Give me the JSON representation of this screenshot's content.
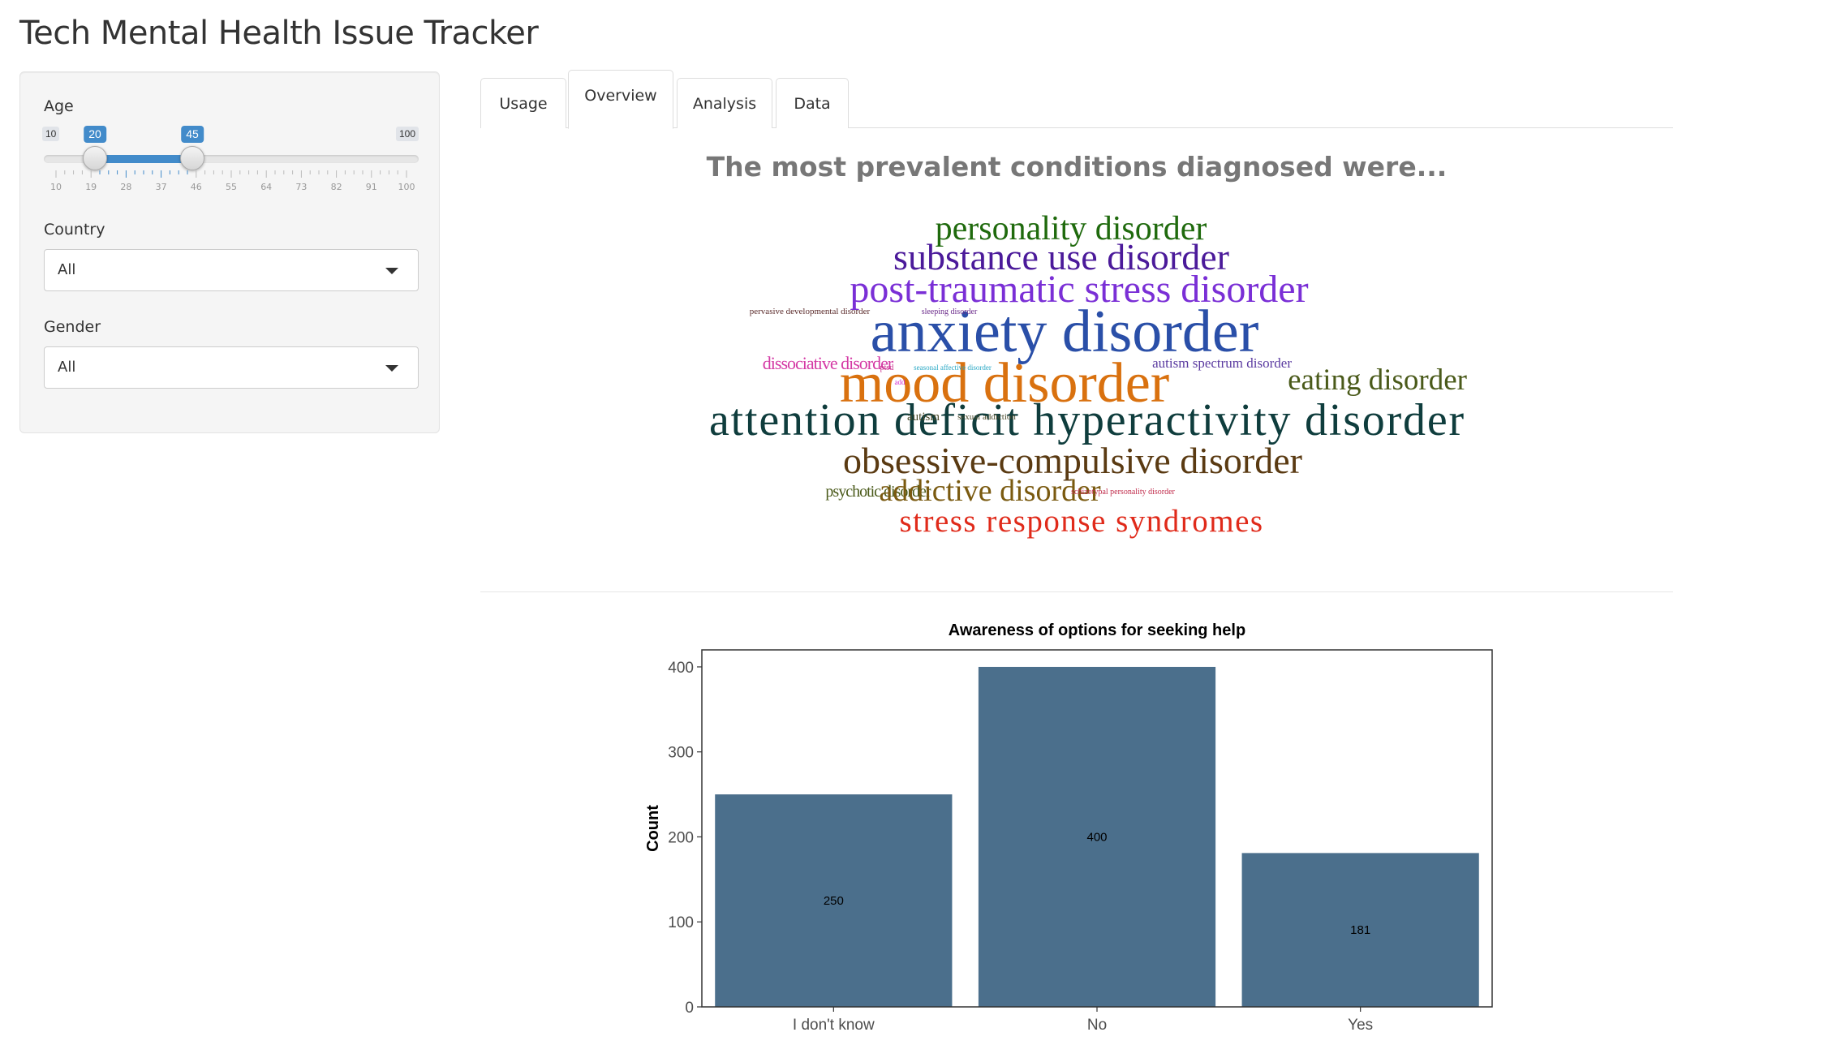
{
  "app": {
    "title": "Tech Mental Health Issue Tracker"
  },
  "sidebar": {
    "age": {
      "label": "Age",
      "min": 10,
      "max": 100,
      "from": 20,
      "to": 45,
      "min_label": "10",
      "max_label": "100",
      "from_label": "20",
      "to_label": "45",
      "grid_labels": [
        "10",
        "19",
        "28",
        "37",
        "46",
        "55",
        "64",
        "73",
        "82",
        "91",
        "100"
      ]
    },
    "country": {
      "label": "Country",
      "value": "All"
    },
    "gender": {
      "label": "Gender",
      "value": "All"
    }
  },
  "tabs": [
    {
      "label": "Usage",
      "active": false
    },
    {
      "label": "Overview",
      "active": true
    },
    {
      "label": "Analysis",
      "active": false
    },
    {
      "label": "Data",
      "active": false
    }
  ],
  "overview": {
    "heading": "The most prevalent conditions diagnosed were...",
    "wordcloud": [
      {
        "text": "personality disorder",
        "color": "#1f6a0d"
      },
      {
        "text": "substance use disorder",
        "color": "#4b1a9a"
      },
      {
        "text": "post-traumatic stress disorder",
        "color": "#7a2fd6"
      },
      {
        "text": "anxiety disorder",
        "color": "#2a4fa8"
      },
      {
        "text": "mood disorder",
        "color": "#d9710f"
      },
      {
        "text": "eating disorder",
        "color": "#4a5a1a"
      },
      {
        "text": "dissociative disorder",
        "color": "#d43aa5"
      },
      {
        "text": "autism spectrum disorder",
        "color": "#5a3aa0"
      },
      {
        "text": "attention deficit hyperactivity disorder",
        "color": "#0f3d3d"
      },
      {
        "text": "obsessive-compulsive disorder",
        "color": "#5a3a12"
      },
      {
        "text": "psychotic disorder",
        "color": "#4a5a1a"
      },
      {
        "text": "addictive disorder",
        "color": "#7a5a10"
      },
      {
        "text": "stress response syndromes",
        "color": "#e02a1a"
      },
      {
        "text": "pervasive developmental disorder",
        "color": "#5a2a2a"
      },
      {
        "text": "sleeping disorder",
        "color": "#6a2a8a"
      },
      {
        "text": "seasonal affective disorder",
        "color": "#27a7c4"
      },
      {
        "text": "ptsd",
        "color": "#c82a8a"
      },
      {
        "text": "add",
        "color": "#d02ad0"
      },
      {
        "text": "autism",
        "color": "#4a4a2a"
      },
      {
        "text": "sexual addiction",
        "color": "#4a4a2a"
      },
      {
        "text": "schizotypal personality disorder",
        "color": "#c02a4a"
      }
    ]
  },
  "chart_data": {
    "type": "bar",
    "title": "Awareness of options for seeking help",
    "xlabel": "",
    "ylabel": "Count",
    "categories": [
      "I don't know",
      "No",
      "Yes"
    ],
    "values": [
      250,
      400,
      181
    ],
    "ylim": [
      0,
      420
    ],
    "yticks": [
      0,
      100,
      200,
      300,
      400
    ],
    "bar_color": "#4b6f8c",
    "grid": false
  }
}
